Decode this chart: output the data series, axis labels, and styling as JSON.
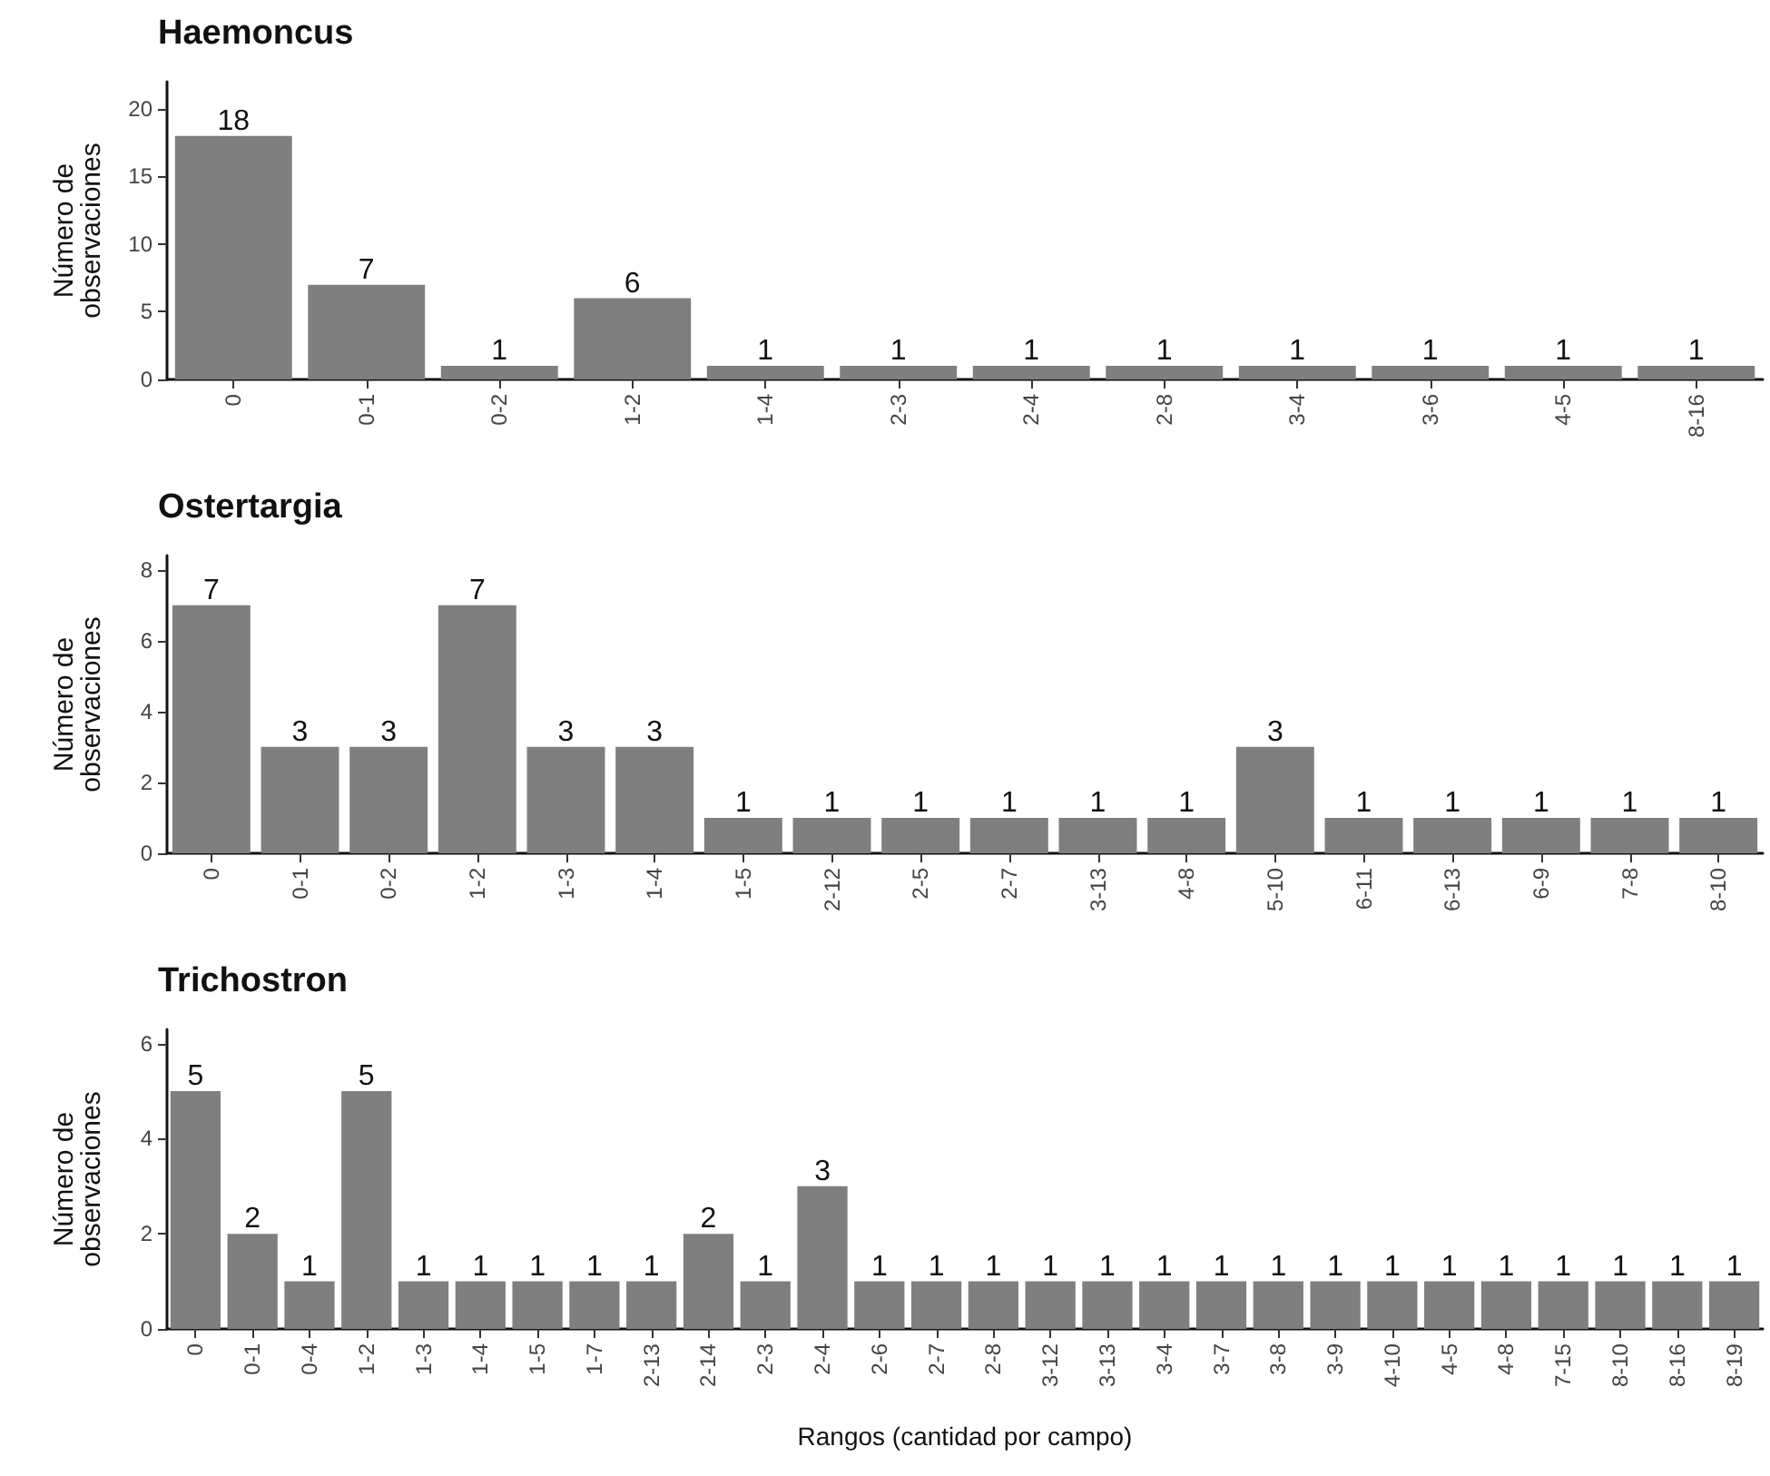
{
  "chart_data": [
    {
      "type": "bar",
      "title": "Haemoncus",
      "ylabel": "Número de\nobservaciones",
      "categories": [
        "0",
        "0-1",
        "0-2",
        "1-2",
        "1-4",
        "2-3",
        "2-4",
        "2-8",
        "3-4",
        "3-6",
        "4-5",
        "8-16"
      ],
      "values": [
        18,
        7,
        1,
        6,
        1,
        1,
        1,
        1,
        1,
        1,
        1,
        1
      ],
      "color": "#7f7f7f",
      "ylim": [
        0,
        22
      ],
      "yticks": [
        0,
        5,
        10,
        15,
        20
      ],
      "data_labels": true,
      "grid": false
    },
    {
      "type": "bar",
      "title": "Ostertargia",
      "ylabel": "Número de\nobservaciones",
      "categories": [
        "0",
        "0-1",
        "0-2",
        "1-2",
        "1-3",
        "1-4",
        "1-5",
        "2-12",
        "2-5",
        "2-7",
        "3-13",
        "4-8",
        "5-10",
        "6-11",
        "6-13",
        "6-9",
        "7-8",
        "8-10"
      ],
      "values": [
        7,
        3,
        3,
        7,
        3,
        3,
        1,
        1,
        1,
        1,
        1,
        1,
        3,
        1,
        1,
        1,
        1,
        1
      ],
      "color": "#7f7f7f",
      "ylim": [
        0,
        8.4
      ],
      "yticks": [
        0,
        2,
        4,
        6,
        8
      ],
      "data_labels": true,
      "grid": false
    },
    {
      "type": "bar",
      "title": "Trichostron",
      "ylabel": "Número de\nobservaciones",
      "xlabel": "Rangos (cantidad por campo)",
      "categories": [
        "0",
        "0-1",
        "0-4",
        "1-2",
        "1-3",
        "1-4",
        "1-5",
        "1-7",
        "2-13",
        "2-14",
        "2-3",
        "2-4",
        "2-6",
        "2-7",
        "2-8",
        "3-12",
        "3-13",
        "3-4",
        "3-7",
        "3-8",
        "3-9",
        "4-10",
        "4-5",
        "4-8",
        "7-15",
        "8-10",
        "8-16",
        "8-19"
      ],
      "values": [
        5,
        2,
        1,
        5,
        1,
        1,
        1,
        1,
        1,
        2,
        1,
        3,
        1,
        1,
        1,
        1,
        1,
        1,
        1,
        1,
        1,
        1,
        1,
        1,
        1,
        1,
        1,
        1
      ],
      "color": "#7f7f7f",
      "ylim": [
        0,
        6.3
      ],
      "yticks": [
        0,
        2,
        4,
        6
      ],
      "data_labels": true,
      "grid": false
    }
  ]
}
